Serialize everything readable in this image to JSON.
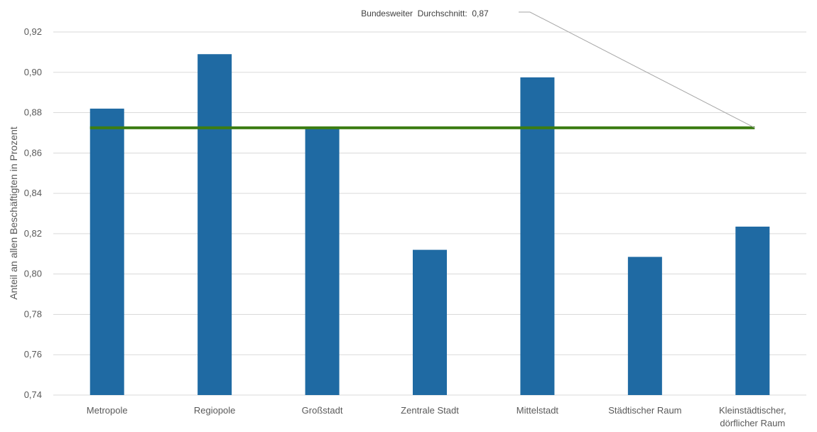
{
  "chart_data": {
    "type": "bar",
    "title": "",
    "xlabel": "",
    "ylabel": "Anteil an allen Beschäftigten in Prozent",
    "categories": [
      [
        "Metropole"
      ],
      [
        "Regiopole"
      ],
      [
        "Großstadt"
      ],
      [
        "Zentrale Stadt"
      ],
      [
        "Mittelstadt"
      ],
      [
        "Städtischer Raum"
      ],
      [
        "Kleinstädtischer,",
        "dörflicher Raum"
      ]
    ],
    "series": [
      {
        "values": [
          0.882,
          0.909,
          0.872,
          0.812,
          0.8975,
          0.8085,
          0.8235
        ],
        "color": "#1f6aa3"
      }
    ],
    "reference_line": {
      "value": 0.8725,
      "color": "#3c7d13",
      "annotation": "Bundesweiter  Durchschnitt:  0,87"
    },
    "ylim": [
      0.74,
      0.92
    ],
    "yticks": [
      "0,74",
      "0,76",
      "0,78",
      "0,80",
      "0,82",
      "0,84",
      "0,86",
      "0,88",
      "0,90",
      "0,92"
    ],
    "grid": true,
    "legend": "none",
    "colors": {
      "gridline": "#dadada",
      "text": "#595959",
      "leader_line": "#a6a6a6"
    }
  }
}
